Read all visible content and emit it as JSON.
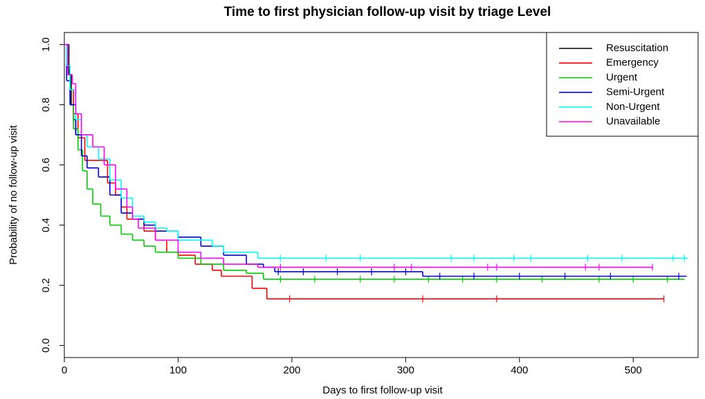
{
  "chart_data": {
    "type": "step",
    "title": "Time to first physician follow-up visit by triage Level",
    "x_label": "Days to first follow-up visit",
    "y_label": "Probability of no follow-up visit",
    "xlim": [
      0,
      557
    ],
    "ylim": [
      -0.04,
      1.04
    ],
    "xticks": [
      0,
      100,
      200,
      300,
      400,
      500
    ],
    "yticks": [
      {
        "value": 0,
        "label": "0.0"
      },
      {
        "value": 0.2,
        "label": "0.2"
      },
      {
        "value": 0.4,
        "label": "0.4"
      },
      {
        "value": 0.6,
        "label": "0.6"
      },
      {
        "value": 0.8,
        "label": "0.8"
      },
      {
        "value": 1,
        "label": "1.0"
      }
    ],
    "legend": "top-right",
    "series": [
      {
        "name": "Resuscitation",
        "color": "#000000",
        "x": [
          0,
          4,
          6,
          8,
          10
        ],
        "values": [
          1.0,
          0.9,
          0.8,
          0.75,
          0.7
        ],
        "censored": []
      },
      {
        "name": "Emergency",
        "color": "#ff0000",
        "x": [
          0,
          3,
          5,
          8,
          12,
          18,
          38,
          45,
          50,
          55,
          70,
          80,
          90,
          100,
          115,
          130,
          138,
          165,
          178,
          527
        ],
        "values": [
          1.0,
          0.92,
          0.85,
          0.77,
          0.69,
          0.615,
          0.54,
          0.5,
          0.46,
          0.42,
          0.38,
          0.35,
          0.31,
          0.3,
          0.27,
          0.25,
          0.23,
          0.19,
          0.155,
          0.155
        ],
        "censored": [
          198,
          315,
          380,
          527
        ]
      },
      {
        "name": "Urgent",
        "color": "#00cc00",
        "x": [
          0,
          2,
          5,
          8,
          12,
          16,
          20,
          25,
          32,
          40,
          50,
          60,
          70,
          80,
          100,
          120,
          140,
          160,
          175,
          545
        ],
        "values": [
          1.0,
          0.9,
          0.8,
          0.72,
          0.65,
          0.58,
          0.52,
          0.47,
          0.43,
          0.4,
          0.37,
          0.35,
          0.33,
          0.31,
          0.29,
          0.27,
          0.25,
          0.24,
          0.22,
          0.22
        ],
        "censored": [
          190,
          220,
          260,
          290,
          320,
          350,
          380,
          420,
          470,
          500,
          530
        ]
      },
      {
        "name": "Semi-Urgent",
        "color": "#0000dd",
        "x": [
          0,
          2,
          5,
          10,
          15,
          20,
          30,
          40,
          50,
          60,
          70,
          80,
          100,
          120,
          140,
          160,
          175,
          185,
          315,
          547
        ],
        "values": [
          1.0,
          0.88,
          0.8,
          0.7,
          0.63,
          0.59,
          0.56,
          0.5,
          0.44,
          0.42,
          0.4,
          0.38,
          0.36,
          0.33,
          0.3,
          0.27,
          0.26,
          0.245,
          0.23,
          0.23
        ],
        "censored": [
          188,
          210,
          240,
          270,
          300,
          330,
          360,
          400,
          440,
          480,
          540
        ]
      },
      {
        "name": "Non-Urgent",
        "color": "#00ffff",
        "x": [
          0,
          2,
          5,
          10,
          15,
          20,
          30,
          40,
          50,
          60,
          70,
          80,
          90,
          100,
          130,
          140,
          170,
          548
        ],
        "values": [
          1.0,
          0.93,
          0.85,
          0.75,
          0.7,
          0.66,
          0.62,
          0.55,
          0.49,
          0.43,
          0.41,
          0.39,
          0.38,
          0.35,
          0.33,
          0.31,
          0.29,
          0.29
        ],
        "censored": [
          190,
          230,
          260,
          340,
          360,
          395,
          410,
          460,
          490,
          535,
          545
        ]
      },
      {
        "name": "Unavailable",
        "color": "#ff00ff",
        "x": [
          0,
          3,
          7,
          10,
          15,
          25,
          35,
          45,
          55,
          60,
          65,
          80,
          100,
          120,
          140,
          170,
          517
        ],
        "values": [
          1.0,
          0.9,
          0.87,
          0.77,
          0.7,
          0.66,
          0.6,
          0.52,
          0.46,
          0.42,
          0.39,
          0.35,
          0.31,
          0.29,
          0.27,
          0.26,
          0.26
        ],
        "censored": [
          190,
          290,
          305,
          372,
          380,
          458,
          470,
          517
        ]
      }
    ]
  }
}
